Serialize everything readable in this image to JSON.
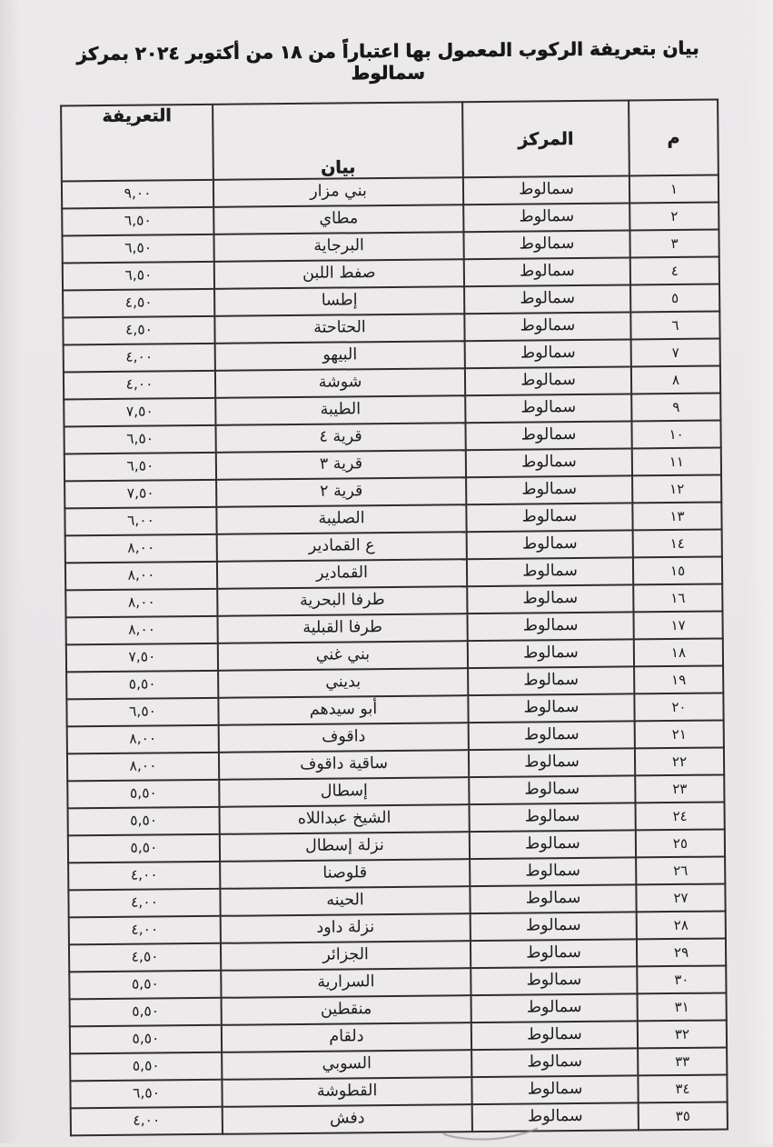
{
  "document": {
    "title": "بيان بتعريفة الركوب المعمول بها اعتباراً من ١٨ من أكتوبر ٢٠٢٤ بمركز سمالوط"
  },
  "table": {
    "headers": {
      "num": "م",
      "center": "المركز",
      "description": "بيان",
      "tariff": "التعريفة"
    },
    "rows": [
      {
        "num": "١",
        "center": "سمالوط",
        "name": "بني مزار",
        "tariff": "٩,٠٠"
      },
      {
        "num": "٢",
        "center": "سمالوط",
        "name": "مطاي",
        "tariff": "٦,٥٠"
      },
      {
        "num": "٣",
        "center": "سمالوط",
        "name": "البرجاية",
        "tariff": "٦,٥٠"
      },
      {
        "num": "٤",
        "center": "سمالوط",
        "name": "صفط اللبن",
        "tariff": "٦,٥٠"
      },
      {
        "num": "٥",
        "center": "سمالوط",
        "name": "إطسا",
        "tariff": "٤,٥٠"
      },
      {
        "num": "٦",
        "center": "سمالوط",
        "name": "الحتاحتة",
        "tariff": "٤,٥٠"
      },
      {
        "num": "٧",
        "center": "سمالوط",
        "name": "البيهو",
        "tariff": "٤,٠٠"
      },
      {
        "num": "٨",
        "center": "سمالوط",
        "name": "شوشة",
        "tariff": "٤,٠٠"
      },
      {
        "num": "٩",
        "center": "سمالوط",
        "name": "الطيبة",
        "tariff": "٧,٥٠"
      },
      {
        "num": "١٠",
        "center": "سمالوط",
        "name": "قرية ٤",
        "tariff": "٦,٥٠"
      },
      {
        "num": "١١",
        "center": "سمالوط",
        "name": "قرية ٣",
        "tariff": "٦,٥٠"
      },
      {
        "num": "١٢",
        "center": "سمالوط",
        "name": "قرية ٢",
        "tariff": "٧,٥٠"
      },
      {
        "num": "١٣",
        "center": "سمالوط",
        "name": "الصليبة",
        "tariff": "٦,٠٠"
      },
      {
        "num": "١٤",
        "center": "سمالوط",
        "name": "ع القمادير",
        "tariff": "٨,٠٠"
      },
      {
        "num": "١٥",
        "center": "سمالوط",
        "name": "القمادير",
        "tariff": "٨,٠٠"
      },
      {
        "num": "١٦",
        "center": "سمالوط",
        "name": "طرفا البحرية",
        "tariff": "٨,٠٠"
      },
      {
        "num": "١٧",
        "center": "سمالوط",
        "name": "طرفا القبلية",
        "tariff": "٨,٠٠"
      },
      {
        "num": "١٨",
        "center": "سمالوط",
        "name": "بني غني",
        "tariff": "٧,٥٠"
      },
      {
        "num": "١٩",
        "center": "سمالوط",
        "name": "بديني",
        "tariff": "٥,٥٠"
      },
      {
        "num": "٢٠",
        "center": "سمالوط",
        "name": "أبو سيدهم",
        "tariff": "٦,٥٠"
      },
      {
        "num": "٢١",
        "center": "سمالوط",
        "name": "داقوف",
        "tariff": "٨,٠٠"
      },
      {
        "num": "٢٢",
        "center": "سمالوط",
        "name": "ساقية داقوف",
        "tariff": "٨,٠٠"
      },
      {
        "num": "٢٣",
        "center": "سمالوط",
        "name": "إسطال",
        "tariff": "٥,٥٠"
      },
      {
        "num": "٢٤",
        "center": "سمالوط",
        "name": "الشيخ عبداللاه",
        "tariff": "٥,٥٠"
      },
      {
        "num": "٢٥",
        "center": "سمالوط",
        "name": "نزلة إسطال",
        "tariff": "٥,٥٠"
      },
      {
        "num": "٢٦",
        "center": "سمالوط",
        "name": "قلوصنا",
        "tariff": "٤,٠٠"
      },
      {
        "num": "٢٧",
        "center": "سمالوط",
        "name": "الحينه",
        "tariff": "٤,٠٠"
      },
      {
        "num": "٢٨",
        "center": "سمالوط",
        "name": "نزلة داود",
        "tariff": "٤,٠٠"
      },
      {
        "num": "٢٩",
        "center": "سمالوط",
        "name": "الجزائر",
        "tariff": "٤,٥٠"
      },
      {
        "num": "٣٠",
        "center": "سمالوط",
        "name": "السرارية",
        "tariff": "٥,٥٠"
      },
      {
        "num": "٣١",
        "center": "سمالوط",
        "name": "منقطين",
        "tariff": "٥,٥٠"
      },
      {
        "num": "٣٢",
        "center": "سمالوط",
        "name": "دلقام",
        "tariff": "٥,٥٠"
      },
      {
        "num": "٣٣",
        "center": "سمالوط",
        "name": "السوبي",
        "tariff": "٥,٥٠"
      },
      {
        "num": "٣٤",
        "center": "سمالوط",
        "name": "القطوشة",
        "tariff": "٦,٥٠"
      },
      {
        "num": "٣٥",
        "center": "سمالوط",
        "name": "دفش",
        "tariff": "٤,٠٠"
      }
    ]
  },
  "colors": {
    "paper": "#e9e7e8",
    "ink": "#1c1b1d",
    "line": "#2e2c2c"
  }
}
